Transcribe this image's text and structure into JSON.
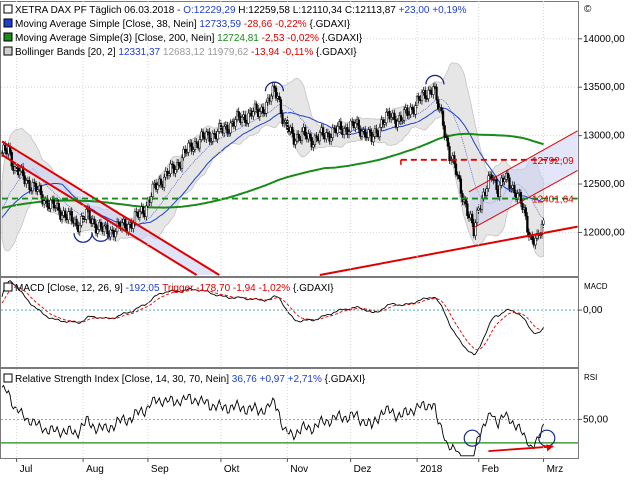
{
  "chart_data": [
    {
      "panel": "price",
      "type": "line",
      "instrument": "XETRA DAX PF Täglich",
      "legend": [
        {
          "id": "main",
          "marker": "white-square",
          "parts": [
            {
              "t": "XETRA DAX PF Täglich  06.03.2018 - ",
              "c": "#000000"
            },
            {
              "t": "O:12229,29 ",
              "c": "#1f3fd0"
            },
            {
              "t": "H:12259,58 ",
              "c": "#000000"
            },
            {
              "t": "L:12110,34 ",
              "c": "#000000"
            },
            {
              "t": "C:12113,87 ",
              "c": "#000000"
            },
            {
              "t": "+23,00 +0,19%",
              "c": "#1f3fd0"
            }
          ]
        },
        {
          "id": "sma38",
          "marker": "blue-square",
          "parts": [
            {
              "t": "Moving Average Simple [Close, 38, Nein] ",
              "c": "#000000"
            },
            {
              "t": "12733,59 ",
              "c": "#1f3fd0"
            },
            {
              "t": "-28,66 -0,22% ",
              "c": "#e00000"
            },
            {
              "t": "{.GDAXI}",
              "c": "#000000"
            }
          ]
        },
        {
          "id": "sma200",
          "marker": "green-square",
          "parts": [
            {
              "t": "Moving Average Simple(3) [Close, 200, Nein] ",
              "c": "#000000"
            },
            {
              "t": "12724,81 ",
              "c": "#1a8a1a"
            },
            {
              "t": "-2,53 -0,02% ",
              "c": "#e00000"
            },
            {
              "t": "{.GDAXI}",
              "c": "#000000"
            }
          ]
        },
        {
          "id": "bb",
          "marker": "gray-square",
          "parts": [
            {
              "t": "Bollinger Bands [20, 2] ",
              "c": "#000000"
            },
            {
              "t": "12331,37 ",
              "c": "#1f3fd0"
            },
            {
              "t": "12683,12 11979,62 ",
              "c": "#9a9a9a"
            },
            {
              "t": "-13,94 -0,11% ",
              "c": "#e00000"
            },
            {
              "t": "{.GDAXI}",
              "c": "#000000"
            }
          ]
        }
      ],
      "y_ticks": [
        "14000,00",
        "13500,00",
        "13000,00",
        "12500,00",
        "12000,00"
      ],
      "ylim": [
        11550,
        14380
      ],
      "x_ticks": [
        "Jul",
        "Aug",
        "Sep",
        "Okt",
        "Nov",
        "Dez",
        "2018",
        "Feb",
        "Mrz"
      ],
      "x_tick_idx": [
        9,
        50,
        90,
        135,
        176,
        215,
        256,
        294,
        334
      ],
      "n_days": 355,
      "close_anchors": [
        [
          0,
          12790
        ],
        [
          4,
          12870
        ],
        [
          8,
          12650
        ],
        [
          14,
          12560
        ],
        [
          22,
          12420
        ],
        [
          30,
          12280
        ],
        [
          38,
          12200
        ],
        [
          46,
          12080
        ],
        [
          52,
          12180
        ],
        [
          58,
          12080
        ],
        [
          64,
          12000
        ],
        [
          72,
          12050
        ],
        [
          80,
          12100
        ],
        [
          88,
          12250
        ],
        [
          94,
          12450
        ],
        [
          100,
          12580
        ],
        [
          106,
          12650
        ],
        [
          112,
          12800
        ],
        [
          120,
          12940
        ],
        [
          128,
          13000
        ],
        [
          136,
          13050
        ],
        [
          142,
          13130
        ],
        [
          150,
          13200
        ],
        [
          158,
          13250
        ],
        [
          164,
          13330
        ],
        [
          168,
          13470
        ],
        [
          170,
          13440
        ],
        [
          174,
          13100
        ],
        [
          180,
          12990
        ],
        [
          186,
          13000
        ],
        [
          192,
          12960
        ],
        [
          198,
          13000
        ],
        [
          206,
          13050
        ],
        [
          212,
          13080
        ],
        [
          218,
          13100
        ],
        [
          224,
          13040
        ],
        [
          228,
          12950
        ],
        [
          234,
          13140
        ],
        [
          240,
          13200
        ],
        [
          246,
          13160
        ],
        [
          252,
          13270
        ],
        [
          256,
          13350
        ],
        [
          260,
          13400
        ],
        [
          264,
          13480
        ],
        [
          266,
          13520
        ],
        [
          268,
          13340
        ],
        [
          272,
          13150
        ],
        [
          276,
          12800
        ],
        [
          280,
          12620
        ],
        [
          284,
          12400
        ],
        [
          288,
          12150
        ],
        [
          291,
          12000
        ],
        [
          294,
          12300
        ],
        [
          298,
          12400
        ],
        [
          302,
          12600
        ],
        [
          306,
          12450
        ],
        [
          310,
          12550
        ],
        [
          314,
          12500
        ],
        [
          318,
          12380
        ],
        [
          322,
          12200
        ],
        [
          326,
          11950
        ],
        [
          330,
          11900
        ],
        [
          334,
          12100
        ]
      ],
      "series": [
        {
          "name": "XETRA DAX PF Täglich",
          "color": "#000000"
        },
        {
          "name": "Moving Average Simple [Close, 38, Nein]",
          "color": "#1f3fd0",
          "window": 38
        },
        {
          "name": "Moving Average Simple(3) [Close, 200, Nein]",
          "color": "#1a8a1a",
          "window": 200
        },
        {
          "name": "Bollinger Bands [20, 2]",
          "color": "#bcbcbc",
          "window": 20,
          "k": 2
        }
      ],
      "annotations": {
        "upper_channel": {
          "color": "#e00000",
          "points": [
            [
              0,
              12940
            ],
            [
              134,
              11560
            ]
          ]
        },
        "lower_channel": {
          "color": "#e00000",
          "points": [
            [
              0,
              12800
            ],
            [
              120,
              11560
            ]
          ]
        },
        "uptrend_line": {
          "color": "#e00000",
          "points": [
            [
              196,
              11560
            ],
            [
              355,
              12060
            ]
          ]
        },
        "rising_channel_top": {
          "color": "#e00000",
          "points": [
            [
              288,
              12420
            ],
            [
              355,
              13050
            ]
          ]
        },
        "rising_channel_bot": {
          "color": "#e00000",
          "points": [
            [
              290,
              12040
            ],
            [
              355,
              12640
            ]
          ]
        },
        "support_dashed_1": {
          "color": "#1a8a1a",
          "y": 12350,
          "x": [
            0,
            355
          ]
        },
        "resistance_dashed": {
          "color": "#e00000",
          "y": 12750,
          "x": [
            246,
            345
          ]
        },
        "resistance_label": {
          "text": "12792,09",
          "color": "#e00000",
          "y": 12750
        },
        "support_label": {
          "text": "12401,64",
          "color": "#e00000",
          "y": 12350
        },
        "circles": [
          [
            50,
            11950
          ],
          [
            61,
            11960
          ],
          [
            168,
            13500
          ],
          [
            267,
            13570
          ]
        ]
      }
    },
    {
      "panel": "macd",
      "type": "line",
      "legend": [
        {
          "id": "macd",
          "marker": "white-square",
          "parts": [
            {
              "t": "MACD [Close, 12, 26, 9] ",
              "c": "#000000"
            },
            {
              "t": "-192,05 ",
              "c": "#1f3fd0"
            },
            {
              "t": "Trigger ",
              "c": "#e00000"
            },
            {
              "t": "-178,70 -1,94 -1,02% ",
              "c": "#e00000"
            },
            {
              "t": "{.GDAXI}",
              "c": "#000000"
            }
          ]
        }
      ],
      "label_right": "MACD",
      "y_ticks": [
        "0,00"
      ],
      "ylim": [
        -360,
        200
      ],
      "series": [
        {
          "name": "MACD",
          "color": "#000000"
        },
        {
          "name": "Trigger",
          "color": "#e00000",
          "window": 9
        }
      ]
    },
    {
      "panel": "rsi",
      "type": "line",
      "legend": [
        {
          "id": "rsi",
          "marker": "white-square",
          "parts": [
            {
              "t": "Relative Strength Index [Close, 14, 30, 70, Nein] ",
              "c": "#000000"
            },
            {
              "t": "36,76 ",
              "c": "#1f3fd0"
            },
            {
              "t": "+0,97 +2,71% ",
              "c": "#1f3fd0"
            },
            {
              "t": "{.GDAXI}",
              "c": "#000000"
            }
          ]
        }
      ],
      "label_right": "RSI",
      "y_ticks": [
        "50,00"
      ],
      "ylim": [
        18,
        92
      ],
      "series": [
        {
          "name": "Relative Strength Index",
          "color": "#000000",
          "window": 14
        }
      ],
      "annotations": {
        "low_line": {
          "color": "#1a8a1a",
          "y": 30
        },
        "arrow": {
          "color": "#e00000",
          "points": [
            [
              300,
              23
            ],
            [
              340,
              27
            ]
          ]
        },
        "circles": [
          [
            290,
            34
          ],
          [
            336,
            34
          ]
        ]
      }
    }
  ],
  "copyright_mark": "©"
}
